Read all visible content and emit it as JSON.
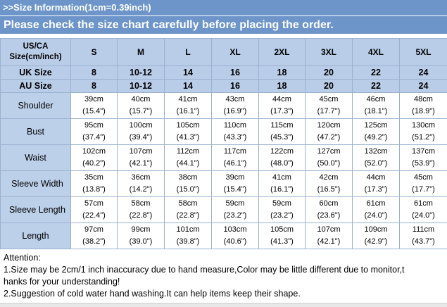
{
  "header": {
    "info": ">>Size Information(1cm=0.39inch)",
    "notice": "Please check the size chart carefully before placing the order."
  },
  "table": {
    "corner": [
      "US/CA",
      "Size(cm/inch)"
    ],
    "sizes": [
      "S",
      "M",
      "L",
      "XL",
      "2XL",
      "3XL",
      "4XL",
      "5XL"
    ],
    "uk": {
      "label": "UK Size",
      "values": [
        "8",
        "10-12",
        "14",
        "16",
        "18",
        "20",
        "22",
        "24"
      ]
    },
    "au": {
      "label": "AU Size",
      "values": [
        "8",
        "10-12",
        "14",
        "16",
        "18",
        "20",
        "22",
        "24"
      ]
    },
    "rows": [
      {
        "label": "Shoulder",
        "cm": [
          "39cm",
          "40cm",
          "41cm",
          "43cm",
          "44cm",
          "45cm",
          "46cm",
          "48cm"
        ],
        "in": [
          "(15.4\")",
          "(15.7\")",
          "(16.1\")",
          "(16.9\")",
          "(17.3\")",
          "(17.7\")",
          "(18.1\")",
          "(18.9\")"
        ]
      },
      {
        "label": "Bust",
        "cm": [
          "95cm",
          "100cm",
          "105cm",
          "110cm",
          "115cm",
          "120cm",
          "125cm",
          "130cm"
        ],
        "in": [
          "(37.4\")",
          "(39.4\")",
          "(41.3\")",
          "(43.3\")",
          "(45.3\")",
          "(47.2\")",
          "(49.2\")",
          "(51.2\")"
        ]
      },
      {
        "label": "Waist",
        "cm": [
          "102cm",
          "107cm",
          "112cm",
          "117cm",
          "122cm",
          "127cm",
          "132cm",
          "137cm"
        ],
        "in": [
          "(40.2\")",
          "(42.1\")",
          "(44.1\")",
          "(46.1\")",
          "(48.0\")",
          "(50.0\")",
          "(52.0\")",
          "(53.9\")"
        ]
      },
      {
        "label": "Sleeve Width",
        "cm": [
          "35cm",
          "36cm",
          "38cm",
          "39cm",
          "41cm",
          "42cm",
          "44cm",
          "45cm"
        ],
        "in": [
          "(13.8\")",
          "(14.2\")",
          "(15.0\")",
          "(15.4\")",
          "(16.1\")",
          "(16.5\")",
          "(17.3\")",
          "(17.7\")"
        ]
      },
      {
        "label": "Sleeve Length",
        "cm": [
          "57cm",
          "58cm",
          "58cm",
          "59cm",
          "59cm",
          "60cm",
          "61cm",
          "61cm"
        ],
        "in": [
          "(22.4\")",
          "(22.8\")",
          "(22.8\")",
          "(23.2\")",
          "(23.2\")",
          "(23.6\")",
          "(24.0\")",
          "(24.0\")"
        ]
      },
      {
        "label": "Length",
        "cm": [
          "97cm",
          "99cm",
          "101cm",
          "103cm",
          "105cm",
          "107cm",
          "109cm",
          "111cm"
        ],
        "in": [
          "(38.2\")",
          "(39.0\")",
          "(39.8\")",
          "(40.6\")",
          "(41.3\")",
          "(42.1\")",
          "(42.9\")",
          "(43.7\")"
        ]
      }
    ]
  },
  "notes": {
    "title": "Attention:",
    "line1": "1.Size may be 2cm/1 inch inaccuracy due to hand measure,Color may be little different due to monitor,t",
    "line1b": "hanks for your understanding!",
    "line2": "2.Suggestion of cold water hand washing.It can help items keep their shape."
  }
}
